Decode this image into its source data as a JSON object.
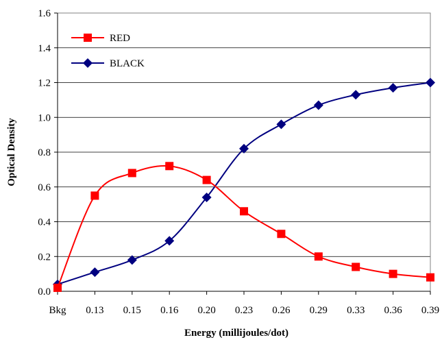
{
  "chart_data": {
    "type": "line",
    "categories": [
      "Bkg",
      "0.13",
      "0.15",
      "0.16",
      "0.20",
      "0.23",
      "0.26",
      "0.29",
      "0.33",
      "0.36",
      "0.39"
    ],
    "series": [
      {
        "name": "RED",
        "marker": "square",
        "color": "#ff0000",
        "values": [
          0.02,
          0.55,
          0.68,
          0.72,
          0.64,
          0.46,
          0.33,
          0.2,
          0.14,
          0.1,
          0.08
        ]
      },
      {
        "name": "BLACK",
        "marker": "diamond",
        "color": "#000080",
        "values": [
          0.04,
          0.11,
          0.18,
          0.29,
          0.54,
          0.82,
          0.96,
          1.07,
          1.13,
          1.17,
          1.2
        ]
      }
    ],
    "xlabel": "Energy (millijoules/dot)",
    "ylabel": "Optical Density",
    "ylim": [
      0,
      1.6
    ],
    "yticks": [
      "0.0",
      "0.2",
      "0.4",
      "0.6",
      "0.8",
      "1.0",
      "1.2",
      "1.4",
      "1.6"
    ],
    "grid": true,
    "legend_position": "top-left",
    "smooth": true
  }
}
